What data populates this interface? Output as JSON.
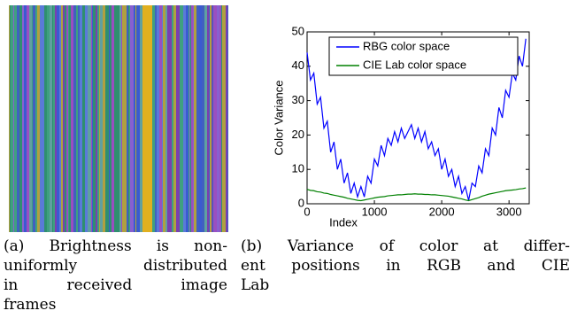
{
  "chart_data": {
    "type": "line",
    "xlabel": "Index",
    "ylabel": "Color Variance",
    "xlim": [
      0,
      3300
    ],
    "ylim": [
      0,
      50
    ],
    "xticks": [
      0,
      1000,
      2000,
      3000
    ],
    "yticks": [
      0,
      10,
      20,
      30,
      40,
      50
    ],
    "legend": "upper center",
    "x": [
      0,
      50,
      100,
      150,
      200,
      250,
      300,
      350,
      400,
      450,
      500,
      550,
      600,
      650,
      700,
      750,
      800,
      850,
      900,
      950,
      1000,
      1050,
      1100,
      1150,
      1200,
      1250,
      1300,
      1350,
      1400,
      1450,
      1500,
      1550,
      1600,
      1650,
      1700,
      1750,
      1800,
      1850,
      1900,
      1950,
      2000,
      2050,
      2100,
      2150,
      2200,
      2250,
      2300,
      2350,
      2400,
      2450,
      2500,
      2550,
      2600,
      2650,
      2700,
      2750,
      2800,
      2850,
      2900,
      2950,
      3000,
      3050,
      3100,
      3150,
      3200,
      3250
    ],
    "series": [
      {
        "name": "RBG color space",
        "color": "#0000ff",
        "values": [
          44,
          36,
          38,
          29,
          31,
          22,
          24,
          15,
          18,
          10,
          13,
          6,
          9,
          3,
          6,
          2,
          5,
          2,
          8,
          6,
          13,
          11,
          17,
          14,
          19,
          17,
          21,
          18,
          22,
          19,
          21,
          23,
          19,
          22,
          18,
          21,
          16,
          18,
          14,
          16,
          10,
          13,
          8,
          10,
          5,
          8,
          3,
          5,
          1,
          6,
          5,
          11,
          9,
          16,
          14,
          22,
          20,
          28,
          25,
          33,
          31,
          38,
          36,
          43,
          40,
          48
        ]
      },
      {
        "name": "CIE Lab color space",
        "color": "#008000",
        "values": [
          4.2,
          3.9,
          3.8,
          3.5,
          3.4,
          3.1,
          3.0,
          2.7,
          2.5,
          2.3,
          2.1,
          1.9,
          1.6,
          1.4,
          1.2,
          1.0,
          0.9,
          1.1,
          1.3,
          1.5,
          1.7,
          1.9,
          2.0,
          2.1,
          2.3,
          2.4,
          2.5,
          2.6,
          2.6,
          2.7,
          2.8,
          2.8,
          2.9,
          2.8,
          2.8,
          2.7,
          2.7,
          2.6,
          2.6,
          2.5,
          2.4,
          2.3,
          2.2,
          2.0,
          1.8,
          1.6,
          1.4,
          1.1,
          0.9,
          1.2,
          1.5,
          1.8,
          2.2,
          2.5,
          2.8,
          3.0,
          3.2,
          3.4,
          3.6,
          3.8,
          3.9,
          4.0,
          4.1,
          4.3,
          4.4,
          4.6
        ]
      }
    ]
  },
  "figure": {
    "caption_a": [
      "(a) Brightness is non-",
      "uniformly distributed",
      "in received image",
      "frames"
    ],
    "caption_b": [
      "(b) Variance of color at differ-",
      "ent positions in RGB and CIE",
      "Lab"
    ]
  }
}
